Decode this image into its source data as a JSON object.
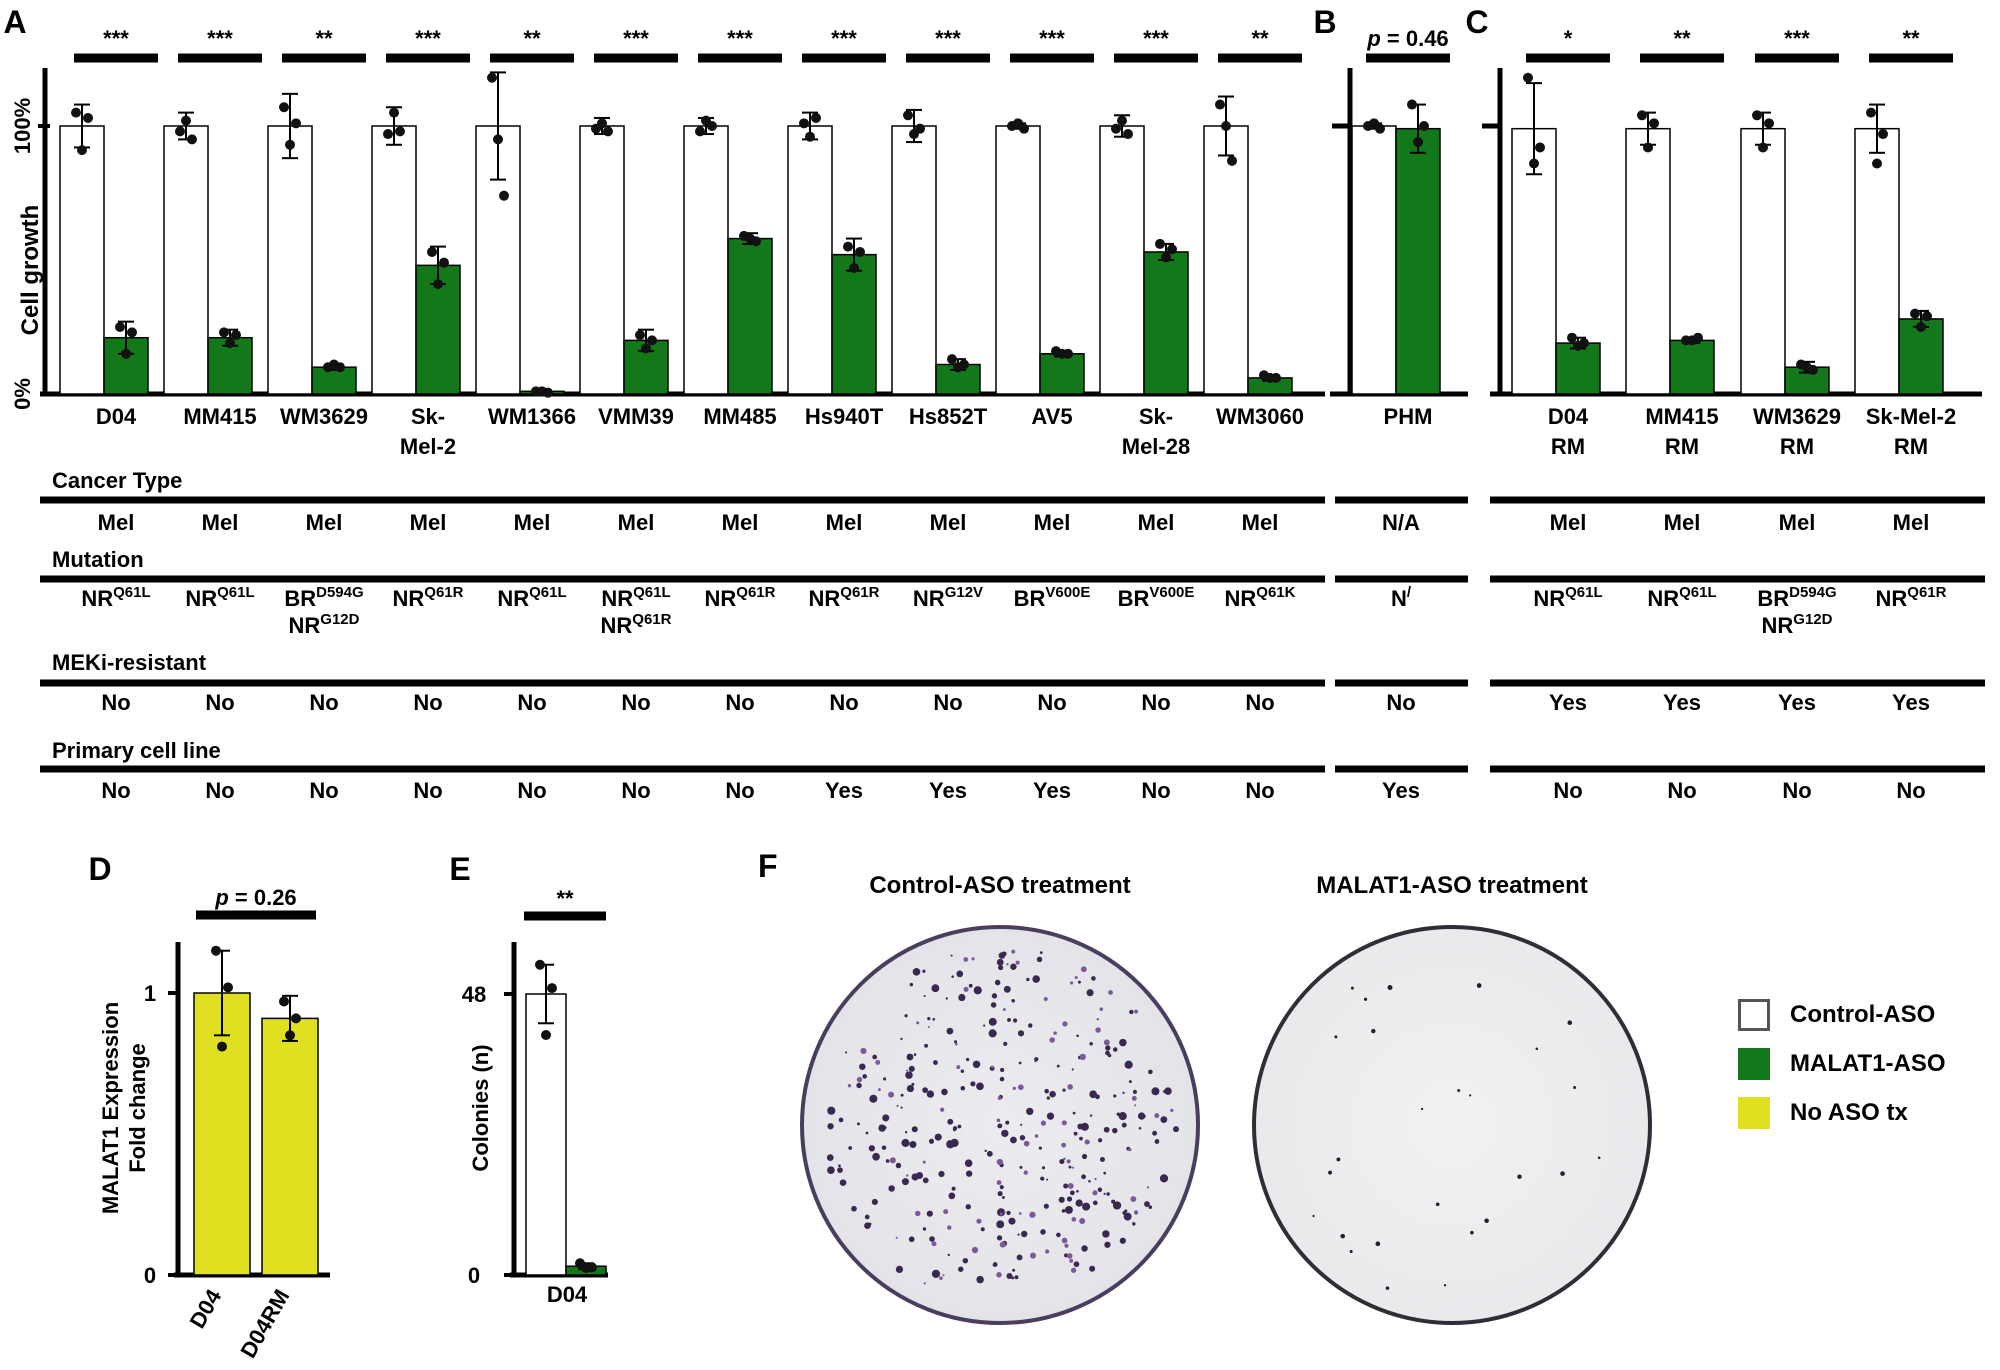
{
  "colors": {
    "control": "#ffffff",
    "malat1": "#12781a",
    "noaso": "#e0e020",
    "axis": "#000000"
  },
  "chart_data": [
    {
      "panel": "A",
      "type": "bar",
      "ylabel": "Cell growth",
      "y_ticks": [
        {
          "value": 100,
          "label": "100%"
        },
        {
          "value": 0,
          "label": "0%"
        }
      ],
      "ylim": [
        0,
        122
      ],
      "categories": [
        [
          "D04"
        ],
        [
          "MM415"
        ],
        [
          "WM3629"
        ],
        [
          "Sk-",
          "Mel-2"
        ],
        [
          "WM1366"
        ],
        [
          "VMM39"
        ],
        [
          "MM485"
        ],
        [
          "Hs940T"
        ],
        [
          "Hs852T"
        ],
        [
          "AV5"
        ],
        [
          "Sk-",
          "Mel-28"
        ],
        [
          "WM3060"
        ]
      ],
      "significance": [
        "***",
        "***",
        "**",
        "***",
        "**",
        "***",
        "***",
        "***",
        "***",
        "***",
        "***",
        "**"
      ],
      "series": [
        {
          "name": "Control-ASO",
          "color": "#ffffff",
          "values": [
            100,
            100,
            100,
            100,
            100,
            100,
            100,
            100,
            100,
            100,
            100,
            100
          ],
          "errors": [
            8,
            5,
            12,
            7,
            20,
            3,
            3,
            5,
            6,
            1,
            4,
            11
          ],
          "points": [
            [
              105,
              91,
              103
            ],
            [
              98,
              102,
              95
            ],
            [
              107,
              93,
              101
            ],
            [
              97,
              105,
              98
            ],
            [
              118,
              95,
              74
            ],
            [
              99,
              101,
              98
            ],
            [
              98,
              102,
              100
            ],
            [
              101,
              96,
              103
            ],
            [
              104,
              97,
              99
            ],
            [
              100,
              101,
              99
            ],
            [
              99,
              102,
              97
            ],
            [
              108,
              100,
              87
            ]
          ]
        },
        {
          "name": "MALAT1-ASO",
          "color": "#12781a",
          "values": [
            21,
            21,
            10,
            48,
            1,
            20,
            58,
            52,
            11,
            15,
            53,
            6
          ],
          "errors": [
            6,
            3,
            1,
            7,
            0.5,
            4,
            2,
            6,
            2,
            1,
            3,
            1
          ],
          "points": [
            [
              25,
              15,
              23
            ],
            [
              23,
              19,
              22
            ],
            [
              10,
              11,
              10
            ],
            [
              53,
              41,
              49
            ],
            [
              1,
              1,
              0.5
            ],
            [
              22,
              17,
              20
            ],
            [
              59,
              58,
              57
            ],
            [
              55,
              47,
              53
            ],
            [
              13,
              10,
              11
            ],
            [
              16,
              15,
              15
            ],
            [
              56,
              51,
              54
            ],
            [
              7,
              6,
              6
            ]
          ]
        }
      ],
      "rows": [
        {
          "header": "Cancer Type",
          "values": [
            [
              "Mel"
            ],
            [
              "Mel"
            ],
            [
              "Mel"
            ],
            [
              "Mel"
            ],
            [
              "Mel"
            ],
            [
              "Mel"
            ],
            [
              "Mel"
            ],
            [
              "Mel"
            ],
            [
              "Mel"
            ],
            [
              "Mel"
            ],
            [
              "Mel"
            ],
            [
              "Mel"
            ]
          ]
        },
        {
          "header": "Mutation",
          "values": [
            [
              [
                "NR",
                "Q61L"
              ]
            ],
            [
              [
                "NR",
                "Q61L"
              ]
            ],
            [
              [
                "BR",
                "D594G"
              ],
              [
                "NR",
                "G12D"
              ]
            ],
            [
              [
                "NR",
                "Q61R"
              ]
            ],
            [
              [
                "NR",
                "Q61L"
              ]
            ],
            [
              [
                "NR",
                "Q61L"
              ],
              [
                "NR",
                "Q61R"
              ]
            ],
            [
              [
                "NR",
                "Q61R"
              ]
            ],
            [
              [
                "NR",
                "Q61R"
              ]
            ],
            [
              [
                "NR",
                "G12V"
              ]
            ],
            [
              [
                "BR",
                "V600E"
              ]
            ],
            [
              [
                "BR",
                "V600E"
              ]
            ],
            [
              [
                "NR",
                "Q61K"
              ]
            ]
          ]
        },
        {
          "header": "MEKi-resistant",
          "values": [
            [
              "No"
            ],
            [
              "No"
            ],
            [
              "No"
            ],
            [
              "No"
            ],
            [
              "No"
            ],
            [
              "No"
            ],
            [
              "No"
            ],
            [
              "No"
            ],
            [
              "No"
            ],
            [
              "No"
            ],
            [
              "No"
            ],
            [
              "No"
            ]
          ]
        },
        {
          "header": "Primary cell line",
          "values": [
            [
              "No"
            ],
            [
              "No"
            ],
            [
              "No"
            ],
            [
              "No"
            ],
            [
              "No"
            ],
            [
              "No"
            ],
            [
              "No"
            ],
            [
              "Yes"
            ],
            [
              "Yes"
            ],
            [
              "Yes"
            ],
            [
              "No"
            ],
            [
              "No"
            ]
          ]
        }
      ]
    },
    {
      "panel": "B",
      "type": "bar",
      "pvalue_prefix": "p",
      "pvalue_text": " = 0.46",
      "ylim": [
        0,
        122
      ],
      "categories": [
        [
          "PHM"
        ]
      ],
      "series": [
        {
          "name": "Control-ASO",
          "color": "#ffffff",
          "values": [
            100
          ],
          "errors": [
            1
          ],
          "points": [
            [
              100,
              101,
              99
            ]
          ]
        },
        {
          "name": "MALAT1-ASO",
          "color": "#12781a",
          "values": [
            99
          ],
          "errors": [
            9
          ],
          "points": [
            [
              108,
              94,
              100
            ]
          ]
        }
      ],
      "rows": [
        {
          "values": [
            [
              "N/A"
            ]
          ]
        },
        {
          "values": [
            [
              "N/A"
            ]
          ]
        },
        {
          "values": [
            [
              "No"
            ]
          ]
        },
        {
          "values": [
            [
              "Yes"
            ]
          ]
        }
      ]
    },
    {
      "panel": "C",
      "type": "bar",
      "ylim": [
        0,
        122
      ],
      "categories": [
        [
          "D04",
          "RM"
        ],
        [
          "MM415",
          "RM"
        ],
        [
          "WM3629",
          "RM"
        ],
        [
          "Sk-Mel-2",
          "RM"
        ]
      ],
      "significance": [
        "*",
        "**",
        "***",
        "**"
      ],
      "series": [
        {
          "name": "Control-ASO",
          "color": "#ffffff",
          "values": [
            99,
            99,
            99,
            99
          ],
          "errors": [
            17,
            6,
            6,
            9
          ],
          "points": [
            [
              118,
              86,
              92
            ],
            [
              104,
              92,
              101
            ],
            [
              104,
              92,
              101
            ],
            [
              105,
              86,
              97
            ]
          ]
        },
        {
          "name": "MALAT1-ASO",
          "color": "#12781a",
          "values": [
            19,
            20,
            10,
            28
          ],
          "errors": [
            2,
            1,
            2,
            3
          ],
          "points": [
            [
              21,
              18,
              19
            ],
            [
              20,
              20,
              21
            ],
            [
              11,
              10,
              9
            ],
            [
              30,
              25,
              29
            ]
          ]
        }
      ],
      "rows": [
        {
          "values": [
            [
              "Mel"
            ],
            [
              "Mel"
            ],
            [
              "Mel"
            ],
            [
              "Mel"
            ]
          ]
        },
        {
          "values": [
            [
              [
                "NR",
                "Q61L"
              ]
            ],
            [
              [
                "NR",
                "Q61L"
              ]
            ],
            [
              [
                "BR",
                "D594G"
              ],
              [
                "NR",
                "G12D"
              ]
            ],
            [
              [
                "NR",
                "Q61R"
              ]
            ]
          ]
        },
        {
          "values": [
            [
              "Yes"
            ],
            [
              "Yes"
            ],
            [
              "Yes"
            ],
            [
              "Yes"
            ]
          ]
        },
        {
          "values": [
            [
              "No"
            ],
            [
              "No"
            ],
            [
              "No"
            ],
            [
              "No"
            ]
          ]
        }
      ]
    },
    {
      "panel": "D",
      "type": "bar",
      "ylabel": [
        "MALAT1 Expression",
        "Fold change"
      ],
      "y_ticks": [
        {
          "value": 1,
          "label": "1"
        },
        {
          "value": 0,
          "label": "0"
        }
      ],
      "ylim": [
        0,
        1.17
      ],
      "pvalue_prefix": "p",
      "pvalue_text": " = 0.26",
      "categories": [
        "D04",
        "D04RM"
      ],
      "series": [
        {
          "name": "No ASO tx",
          "color": "#e0e020",
          "values": [
            1.0,
            0.91
          ],
          "errors": [
            0.15,
            0.08
          ],
          "points": [
            [
              1.15,
              0.81,
              1.02
            ],
            [
              0.97,
              0.85,
              0.91
            ]
          ]
        }
      ]
    },
    {
      "panel": "E",
      "type": "bar",
      "ylabel": "Colonies (n)",
      "y_ticks": [
        {
          "value": 48,
          "label": "48"
        },
        {
          "value": 0,
          "label": "0"
        }
      ],
      "ylim": [
        0,
        56.5
      ],
      "significance_label": "**",
      "categories": [
        "D04"
      ],
      "series": [
        {
          "name": "Control-ASO",
          "color": "#ffffff",
          "values": [
            48
          ],
          "errors": [
            5
          ],
          "points": [
            [
              53,
              41,
              49
            ]
          ]
        },
        {
          "name": "MALAT1-ASO",
          "color": "#12781a",
          "values": [
            1.5
          ],
          "errors": [
            0.5
          ],
          "points": [
            [
              2,
              1.2,
              1.3
            ]
          ]
        }
      ]
    }
  ],
  "panel_f": {
    "letter": "F",
    "control_label": "Control-ASO treatment",
    "malat1_label": "MALAT1-ASO treatment"
  },
  "legend": [
    {
      "label": "Control-ASO",
      "fill": "#ffffff",
      "border": "#555555"
    },
    {
      "label": "MALAT1-ASO",
      "fill": "#12781a",
      "border": "#12781a"
    },
    {
      "label": "No ASO tx",
      "fill": "#e0e020",
      "border": "#e0e020"
    }
  ],
  "panel_letters": [
    "A",
    "B",
    "C",
    "D",
    "E"
  ]
}
